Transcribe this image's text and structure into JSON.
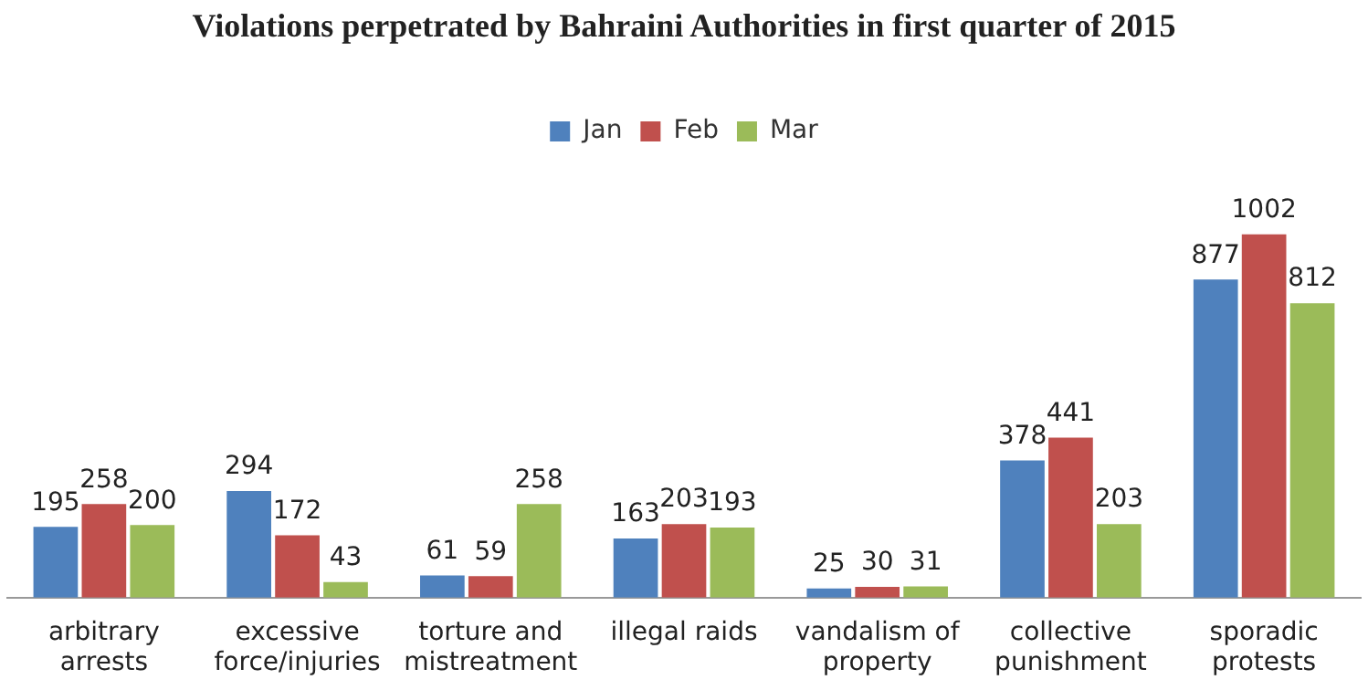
{
  "chart_data": {
    "type": "bar",
    "title": "Violations perpetrated by Bahraini Authorities in first quarter of 2015",
    "categories": [
      "arbitrary arrests",
      "excessive force/injuries",
      "torture and mistreatment",
      "illegal raids",
      "vandalism of property",
      "collective punishment",
      "sporadic protests"
    ],
    "series": [
      {
        "name": "Jan",
        "color": "#4f81bd",
        "values": [
          195,
          294,
          61,
          163,
          25,
          378,
          877
        ]
      },
      {
        "name": "Feb",
        "color": "#c0504d",
        "values": [
          258,
          172,
          59,
          203,
          30,
          441,
          1002
        ]
      },
      {
        "name": "Mar",
        "color": "#9bbb59",
        "values": [
          200,
          43,
          258,
          193,
          31,
          203,
          812
        ]
      }
    ],
    "data_labels": true,
    "legend": "top",
    "grid": false,
    "tick_labels": "x"
  }
}
